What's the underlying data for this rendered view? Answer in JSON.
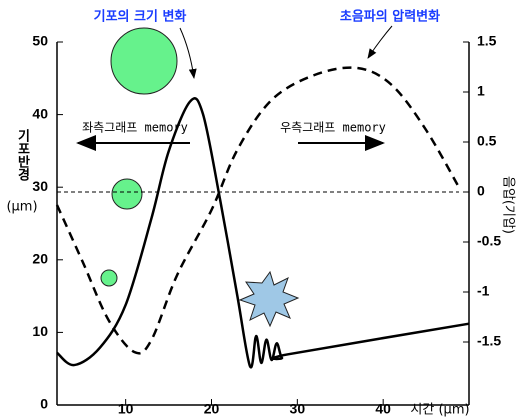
{
  "chart_data": {
    "type": "line",
    "x_label": "시간 (μm)",
    "y_label": "기포반경",
    "y_unit": "(μm)",
    "y2_label": "음압(기압)",
    "annotations": [
      "좌측그래프 memory",
      "우측그래프 memory"
    ],
    "xlim": [
      2,
      50
    ],
    "xticks": [
      10,
      20,
      30,
      40
    ],
    "ylim": [
      0,
      50
    ],
    "yticks": [
      0,
      10,
      20,
      30,
      40,
      50
    ],
    "y2lim": [
      -2.13,
      1.5
    ],
    "y2ticks": [
      -1.5,
      -1,
      -0.5,
      0,
      0.5,
      1,
      1.5
    ],
    "y2_reference": 0,
    "series": [
      {
        "name": "기포의 크기 변화",
        "color": "#000000",
        "dashed": false,
        "x": [
          2,
          4,
          7,
          10,
          13,
          15,
          17.5,
          19,
          21,
          23,
          24.5,
          25.2,
          25.8,
          26.4,
          27,
          27.6,
          28.2,
          29,
          50
        ],
        "values": [
          7.2,
          5.5,
          7.9,
          13.8,
          25.7,
          34.9,
          41.8,
          40.1,
          28.3,
          15.1,
          5.3,
          9.5,
          5.8,
          9,
          6.2,
          8.5,
          6.5,
          7,
          11.2
        ]
      },
      {
        "name": "초음파의 압력변화",
        "color": "#000000",
        "dashed": true,
        "axis": "y2",
        "x": [
          2,
          5,
          8,
          11,
          13,
          16,
          20,
          23,
          27,
          32,
          37,
          41,
          45,
          49
        ],
        "values": [
          -0.13,
          -0.7,
          -1.28,
          -1.6,
          -1.48,
          -0.83,
          -0.18,
          0.42,
          0.92,
          1.17,
          1.24,
          1.07,
          0.62,
          0.02
        ]
      }
    ]
  }
}
